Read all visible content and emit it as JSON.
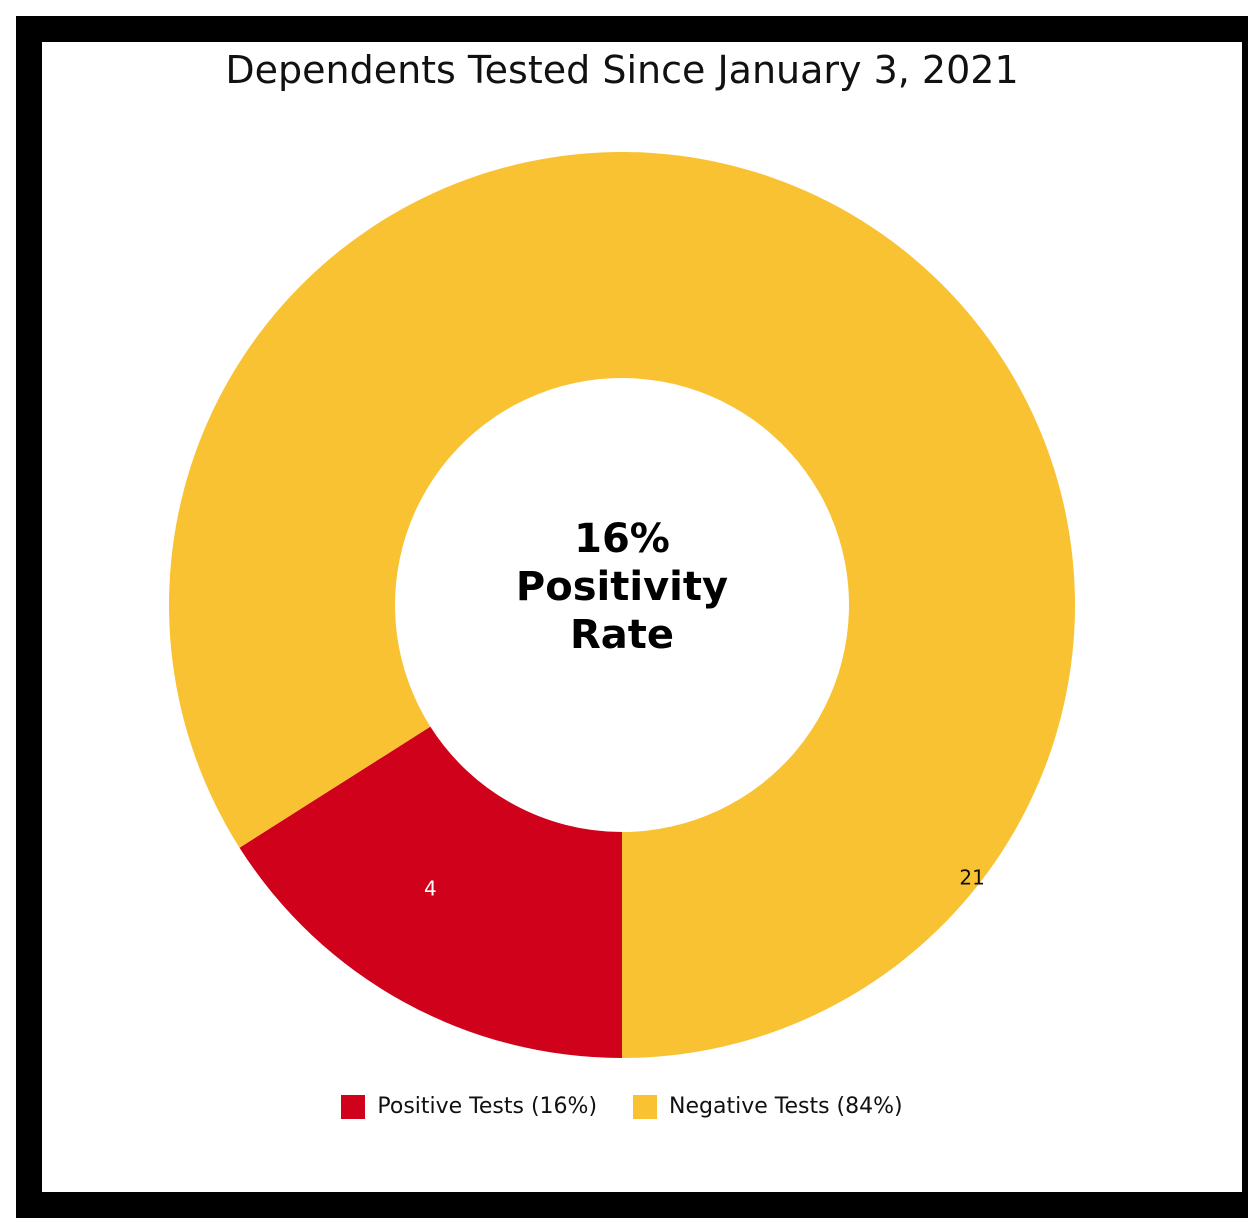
{
  "chart_data": {
    "type": "pie",
    "title": "Dependents Tested Since January 3, 2021",
    "donut": true,
    "center_label": {
      "line1": "16%",
      "line2": "Positivity",
      "line3": "Rate"
    },
    "slices": [
      {
        "name": "Positive Tests (16%)",
        "value": 4,
        "label": "4",
        "color": "#D0021B",
        "label_color": "#ffffff"
      },
      {
        "name": "Negative Tests (84%)",
        "value": 21,
        "label": "21",
        "color": "#F9C233",
        "label_color": "#111111"
      }
    ],
    "legend_position": "bottom-center"
  }
}
